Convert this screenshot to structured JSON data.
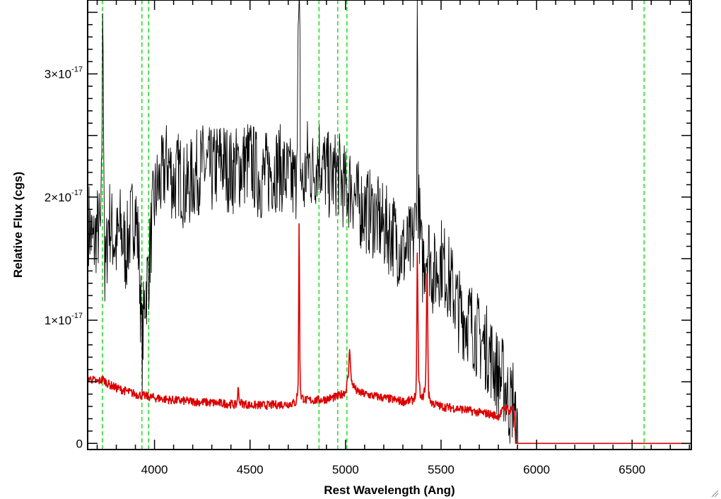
{
  "chart_data": {
    "type": "line",
    "xlabel": "Rest Wavelength (Ang)",
    "ylabel": "Relative Flux (cgs)",
    "xlim": [
      3650,
      6810
    ],
    "ylim": [
      -5e-19,
      3.6e-17
    ],
    "x_ticks": [
      4000,
      4500,
      5000,
      5500,
      6000,
      6500
    ],
    "x_tick_labels": [
      "4000",
      "4500",
      "5000",
      "5500",
      "6000",
      "6500"
    ],
    "y_ticks": [
      0,
      1e-17,
      2e-17,
      3e-17
    ],
    "y_tick_labels": [
      {
        "mantissa": "0",
        "exponent": ""
      },
      {
        "mantissa": "1×10",
        "exponent": "-17"
      },
      {
        "mantissa": "2×10",
        "exponent": "-17"
      },
      {
        "mantissa": "3×10",
        "exponent": "-17"
      }
    ],
    "grid": false,
    "legend": "none",
    "reference_lines": {
      "orientation": "vertical",
      "style": "dashed",
      "color": "#22dd22",
      "x": [
        3727,
        3934,
        3969,
        4861,
        4959,
        5007,
        6563
      ]
    },
    "series": [
      {
        "color": "#000000",
        "x": [
          3655,
          3680,
          3700,
          3720,
          3730,
          3740,
          3760,
          3780,
          3800,
          3820,
          3850,
          3880,
          3900,
          3920,
          3935,
          3950,
          3969,
          3990,
          4010,
          4040,
          4070,
          4100,
          4130,
          4160,
          4200,
          4250,
          4300,
          4350,
          4400,
          4450,
          4500,
          4550,
          4600,
          4650,
          4700,
          4740,
          4757,
          4760,
          4764,
          4780,
          4800,
          4830,
          4861,
          4880,
          4920,
          4960,
          5000,
          5030,
          5060,
          5100,
          5150,
          5200,
          5250,
          5300,
          5350,
          5370,
          5376,
          5380,
          5400,
          5430,
          5460,
          5500,
          5550,
          5600,
          5650,
          5700,
          5750,
          5800,
          5830,
          5860,
          5880,
          5890,
          5900,
          6000,
          6200,
          6400,
          6600,
          6810
        ],
        "y": [
          1.8e-17,
          1.6e-17,
          1.75e-17,
          1.7e-17,
          3.5e-17,
          1.3e-17,
          1.85e-17,
          1.7e-17,
          1.6e-17,
          1.75e-17,
          1.55e-17,
          1.8e-17,
          1.9e-17,
          1.5e-17,
          7.5e-18,
          1.2e-17,
          1.4e-17,
          1.85e-17,
          2.05e-17,
          2.15e-17,
          2.3e-17,
          2.1e-17,
          2.2e-17,
          2.05e-17,
          2.15e-17,
          2.25e-17,
          2.2e-17,
          2.3e-17,
          2.2e-17,
          2.25e-17,
          2.3e-17,
          2.15e-17,
          2.2e-17,
          2.25e-17,
          2.15e-17,
          2.1e-17,
          3.6e-17,
          3.6e-17,
          2.2e-17,
          2.05e-17,
          2.3e-17,
          2.2e-17,
          2.35e-17,
          2.25e-17,
          2.15e-17,
          2.2e-17,
          2.05e-17,
          2.1e-17,
          1.95e-17,
          1.9e-17,
          1.85e-17,
          1.75e-17,
          1.7e-17,
          1.55e-17,
          1.6e-17,
          1.85e-17,
          3.6e-17,
          2e-17,
          1.45e-17,
          1.6e-17,
          1.35e-17,
          1.5e-17,
          1.3e-17,
          1.05e-17,
          1e-17,
          8.5e-18,
          7.5e-18,
          5.5e-18,
          5e-18,
          3e-18,
          4e-18,
          1e-18,
          0,
          0,
          0,
          0,
          0,
          0
        ]
      },
      {
        "color": "#dd0000",
        "x": [
          3655,
          3700,
          3730,
          3760,
          3800,
          3900,
          4000,
          4100,
          4200,
          4300,
          4400,
          4430,
          4438,
          4446,
          4500,
          4600,
          4700,
          4740,
          4752,
          4757,
          4762,
          4768,
          4790,
          4850,
          4900,
          4960,
          5000,
          5015,
          5022,
          5030,
          5060,
          5100,
          5200,
          5300,
          5350,
          5370,
          5376,
          5382,
          5395,
          5410,
          5420,
          5427,
          5434,
          5450,
          5500,
          5600,
          5700,
          5750,
          5800,
          5840,
          5860,
          5880,
          5888,
          5890,
          5900,
          6000,
          6200,
          6400,
          6600,
          6810
        ],
        "y": [
          5.3e-18,
          5e-18,
          5.2e-18,
          4.8e-18,
          4.5e-18,
          4e-18,
          3.7e-18,
          3.5e-18,
          3.4e-18,
          3.3e-18,
          3.2e-18,
          3.1e-18,
          4.5e-18,
          3.3e-18,
          3.1e-18,
          3.1e-18,
          3.2e-18,
          3.3e-18,
          4.5e-18,
          1.9e-17,
          5e-18,
          3.8e-18,
          3.5e-18,
          3.5e-18,
          3.6e-18,
          3.8e-18,
          4.2e-18,
          5.5e-18,
          8e-18,
          5e-18,
          4.2e-18,
          4e-18,
          3.7e-18,
          3.4e-18,
          3.5e-18,
          4e-18,
          1.65e-17,
          5.5e-18,
          3.5e-18,
          4e-18,
          5e-18,
          1.5e-17,
          4e-18,
          3.3e-18,
          3e-18,
          2.8e-18,
          2.5e-18,
          2.4e-18,
          2.2e-18,
          3e-18,
          2.5e-18,
          3.2e-18,
          1e-18,
          0,
          0,
          0,
          0,
          0,
          0,
          0
        ]
      }
    ]
  }
}
